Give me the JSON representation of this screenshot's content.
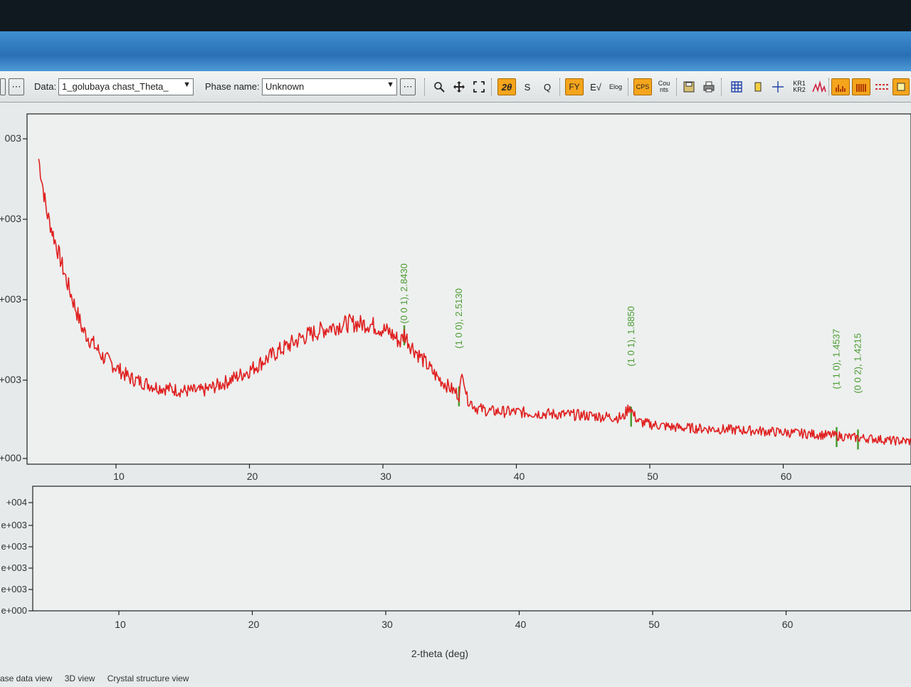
{
  "toolbar": {
    "data_label": "Data:",
    "data_value": "1_golubaya chast_Theta_",
    "phase_label": "Phase name:",
    "phase_value": "Unknown",
    "buttons": {
      "two_theta": "2θ",
      "s": "S",
      "q": "Q",
      "fy": "FY",
      "ey": "E√",
      "log": "Elog",
      "cps": "CPS",
      "counts": "Cou nts",
      "krd": "KR1 KR2"
    },
    "icons": [
      "dots-icon",
      "zoom-icon",
      "pan-icon",
      "fit-icon",
      "save-icon",
      "print-icon",
      "grid-icon",
      "marker-icon",
      "cross-icon",
      "kalpha-icon",
      "peaks-icon",
      "bars-icon",
      "bars2-icon",
      "dash-icon",
      "legend-icon"
    ],
    "accent_color": "#f4a51c"
  },
  "chart_data": {
    "type": "line",
    "xlabel": "2-theta (deg)",
    "x_ticks": [
      "10",
      "20",
      "30",
      "40",
      "50",
      "60"
    ],
    "top_y_ticks": [
      "003",
      "+003",
      "+003",
      "+003",
      "+000"
    ],
    "bottom_y_ticks": [
      "+004",
      "e+003",
      "e+003",
      "e+003",
      "e+003",
      "e+000"
    ],
    "xlim": [
      4.2,
      69.8
    ],
    "ylim": [
      0,
      4300
    ],
    "series": [
      {
        "color": "#e02020",
        "x": [
          4.2,
          4.8,
          5.5,
          6.3,
          7.5,
          9,
          11,
          13,
          15,
          16.5,
          18,
          20,
          22,
          24,
          26,
          27.5,
          29,
          30.5,
          31.3,
          31.6,
          32,
          33,
          34,
          35,
          35.7,
          36,
          36.3,
          37,
          38,
          40,
          42,
          45,
          48,
          48.5,
          48.8,
          49.2,
          50,
          52,
          55,
          58,
          60,
          62,
          64,
          65,
          66,
          67,
          68,
          69.8
        ],
        "y": [
          3750,
          3100,
          2700,
          2250,
          1650,
          1320,
          1060,
          950,
          900,
          900,
          990,
          1150,
          1370,
          1560,
          1680,
          1730,
          1720,
          1620,
          1500,
          1600,
          1480,
          1280,
          1080,
          940,
          850,
          1150,
          810,
          690,
          650,
          640,
          620,
          600,
          570,
          720,
          600,
          520,
          490,
          450,
          430,
          410,
          390,
          370,
          350,
          330,
          320,
          310,
          290,
          280
        ]
      }
    ],
    "peak_markers": [
      {
        "x": 31.6,
        "label": "(0 0 1), 2.8430"
      },
      {
        "x": 35.7,
        "label": "(1 0 0), 2.5130"
      },
      {
        "x": 48.6,
        "label": "(1 0 1), 1.8850"
      },
      {
        "x": 64.0,
        "label": "(1 1 0), 1.4537"
      },
      {
        "x": 65.6,
        "label": "(0 0 2), 1.4215"
      }
    ],
    "marker_color": "#4a9a30",
    "grid": false
  },
  "status_tabs": [
    "ase data view",
    "3D view",
    "Crystal structure view"
  ]
}
